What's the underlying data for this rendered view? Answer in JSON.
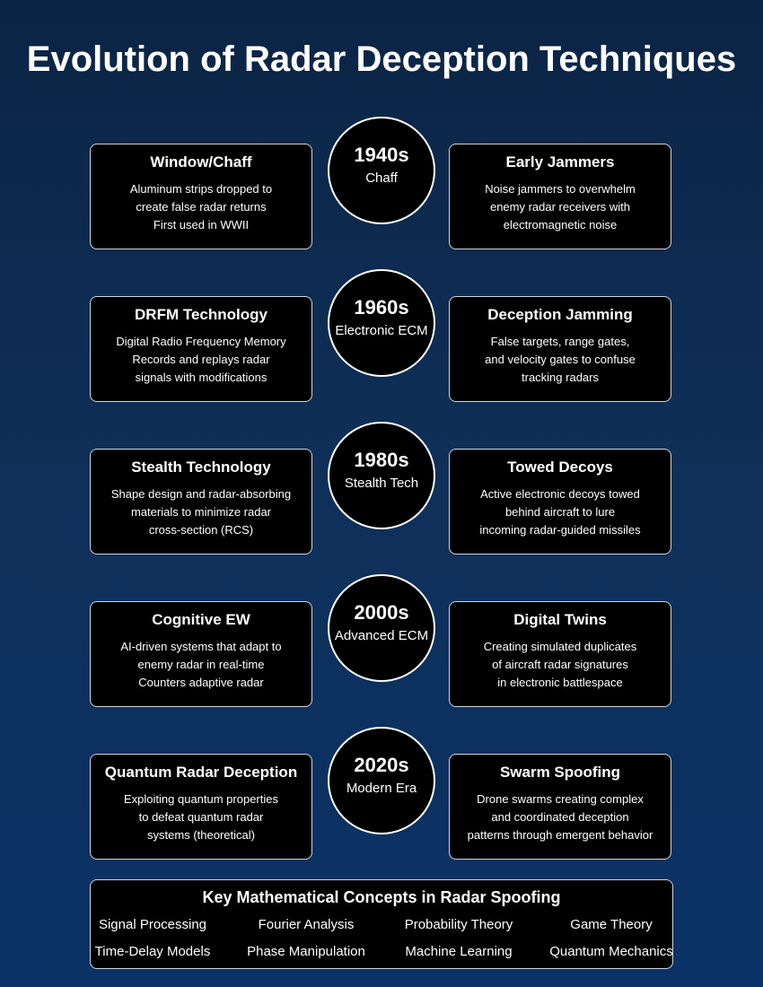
{
  "title": "Evolution of Radar Deception Techniques",
  "eras": [
    {
      "year": "1940s",
      "label": "Chaff",
      "left": {
        "title": "Window/Chaff",
        "lines": [
          "Aluminum strips dropped to",
          "create false radar returns",
          "First used in WWII"
        ]
      },
      "right": {
        "title": "Early Jammers",
        "lines": [
          "Noise jammers to overwhelm",
          "enemy radar receivers with",
          "electromagnetic noise"
        ]
      }
    },
    {
      "year": "1960s",
      "label": "Electronic ECM",
      "left": {
        "title": "DRFM Technology",
        "lines": [
          "Digital Radio Frequency Memory",
          "Records and replays radar",
          "signals with modifications"
        ]
      },
      "right": {
        "title": "Deception Jamming",
        "lines": [
          "False targets, range gates,",
          "and velocity gates to confuse",
          "tracking radars"
        ]
      }
    },
    {
      "year": "1980s",
      "label": "Stealth Tech",
      "left": {
        "title": "Stealth Technology",
        "lines": [
          "Shape design and radar-absorbing",
          "materials to minimize radar",
          "cross-section (RCS)"
        ]
      },
      "right": {
        "title": "Towed Decoys",
        "lines": [
          "Active electronic decoys towed",
          "behind aircraft to lure",
          "incoming radar-guided missiles"
        ]
      }
    },
    {
      "year": "2000s",
      "label": "Advanced ECM",
      "left": {
        "title": "Cognitive EW",
        "lines": [
          "AI-driven systems that adapt to",
          "enemy radar in real-time",
          "Counters adaptive radar"
        ]
      },
      "right": {
        "title": "Digital Twins",
        "lines": [
          "Creating simulated duplicates",
          "of aircraft radar signatures",
          "in electronic battlespace"
        ]
      }
    },
    {
      "year": "2020s",
      "label": "Modern Era",
      "left": {
        "title": "Quantum Radar Deception",
        "lines": [
          "Exploiting quantum properties",
          "to defeat quantum radar",
          "systems (theoretical)"
        ]
      },
      "right": {
        "title": "Swarm Spoofing",
        "lines": [
          "Drone swarms creating complex",
          "and coordinated deception",
          "patterns through emergent behavior"
        ]
      }
    }
  ],
  "concepts": {
    "title": "Key Mathematical Concepts in Radar Spoofing",
    "items": [
      "Signal Processing",
      "Fourier Analysis",
      "Probability Theory",
      "Game Theory",
      "Time-Delay Models",
      "Phase Manipulation",
      "Machine Learning",
      "Quantum Mechanics"
    ]
  }
}
